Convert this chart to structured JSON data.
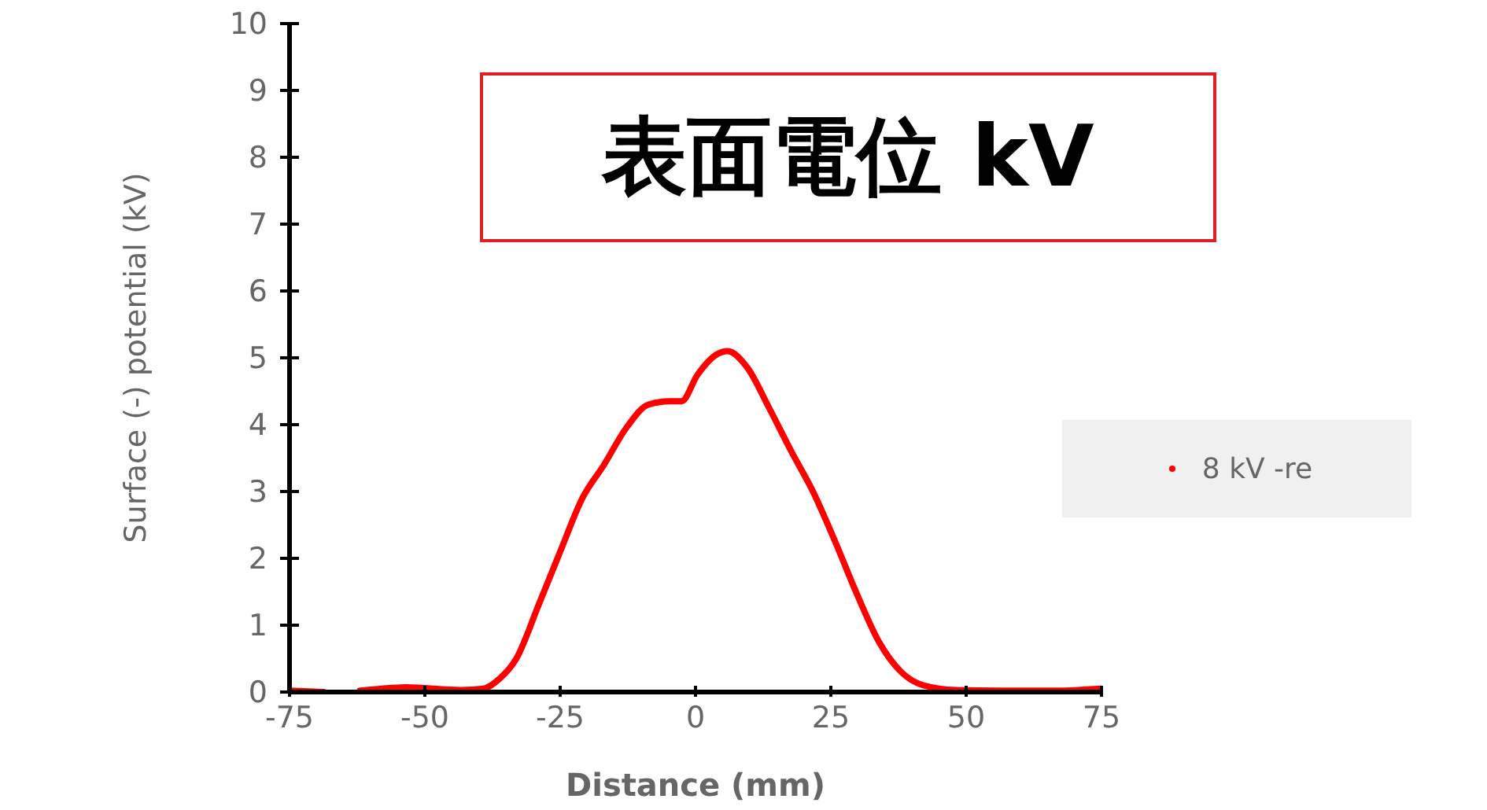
{
  "chart_data": {
    "type": "line",
    "xlabel": "Distance (mm)",
    "ylabel": "Surface (-) potential (kV)",
    "annotations": [
      "表面電位 kV"
    ],
    "x": [
      -75,
      -68.7,
      -65,
      -62,
      -53.5,
      -43.3,
      -39.2,
      -36.2,
      -33.1,
      -29,
      -25,
      -20.9,
      -16.9,
      -12.8,
      -8.7,
      -4.7,
      -2.6,
      0.4,
      3.9,
      5.9,
      9.6,
      13.6,
      17.7,
      21.7,
      25.8,
      29.9,
      33.9,
      38,
      42.1,
      48.2,
      58.3,
      66.5,
      75
    ],
    "series": [
      {
        "name": "8 kV -re",
        "color": "#ff0000",
        "values": [
          0.02,
          0,
          null,
          0.02,
          0.07,
          0.03,
          0.05,
          0.2,
          0.5,
          1.3,
          2.1,
          2.9,
          3.4,
          3.95,
          4.3,
          4.35,
          4.35,
          4.75,
          5.05,
          5.1,
          4.85,
          4.25,
          3.6,
          3.0,
          2.25,
          1.45,
          0.75,
          0.3,
          0.1,
          0.03,
          0.02,
          0.02,
          0.05
        ]
      }
    ],
    "xlim": [
      -75,
      75
    ],
    "xticks": [
      -75,
      -50,
      -25,
      0,
      25,
      50,
      75
    ],
    "ylim": [
      0,
      10
    ],
    "yticks": [
      0,
      1,
      2,
      3,
      4,
      5,
      6,
      7,
      8,
      9,
      10
    ],
    "grid": false,
    "legend": "right",
    "marker": "none",
    "line_style": "solid"
  }
}
